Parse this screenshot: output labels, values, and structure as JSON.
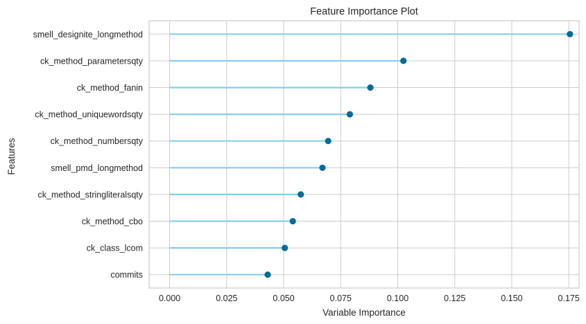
{
  "chart_data": {
    "type": "scatter",
    "title": "Feature Importance Plot",
    "xlabel": "Variable Importance",
    "ylabel": "Features",
    "xlim": [
      -0.009,
      0.1795
    ],
    "xticks": [
      0.0,
      0.025,
      0.05,
      0.075,
      0.1,
      0.125,
      0.15,
      0.175
    ],
    "xtick_labels": [
      "0.000",
      "0.025",
      "0.050",
      "0.075",
      "0.100",
      "0.125",
      "0.150",
      "0.175"
    ],
    "grid": true,
    "categories": [
      "smell_designite_longmethod",
      "ck_method_parametersqty",
      "ck_method_fanin",
      "ck_method_uniquewordsqty",
      "ck_method_numbersqty",
      "smell_pmd_longmethod",
      "ck_method_stringliteralsqty",
      "ck_method_cbo",
      "ck_class_lcom",
      "commits"
    ],
    "values": [
      0.1755,
      0.1025,
      0.088,
      0.079,
      0.0695,
      0.067,
      0.0575,
      0.054,
      0.0505,
      0.043
    ],
    "colors": {
      "stem": "#87ceeb",
      "marker": "#036b9b",
      "grid": "#cccccc"
    }
  }
}
